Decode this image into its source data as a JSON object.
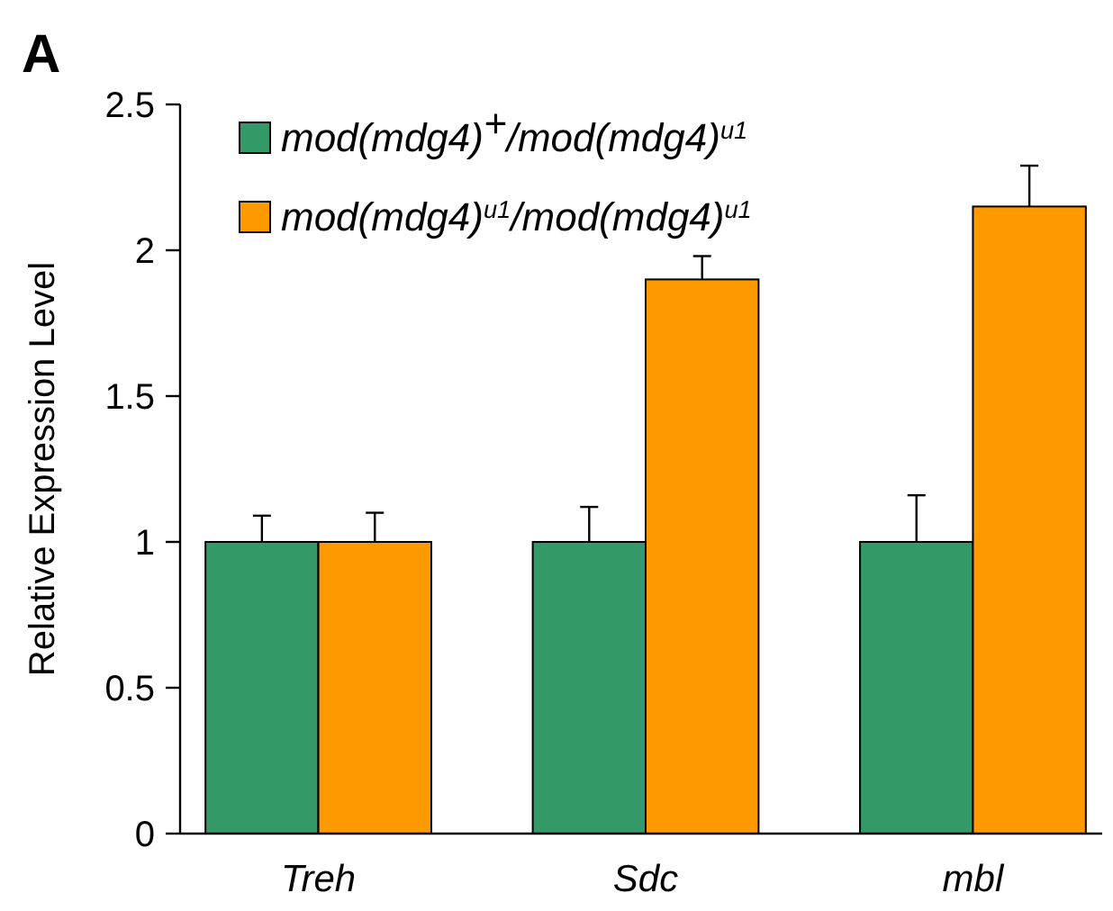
{
  "chart_data": {
    "type": "bar",
    "annotations": [
      "A"
    ],
    "ylabel": "Relative Expression Level",
    "categories": [
      "Treh",
      "Sdc",
      "mbl"
    ],
    "series": [
      {
        "name": "mod(mdg4)$^{+}$/mod(mdg4)$^{u1}$",
        "color": "#339966",
        "values": [
          1,
          1,
          1
        ],
        "errors": [
          [
            1,
            1.09
          ],
          [
            1,
            1.12
          ],
          [
            1,
            1.16
          ]
        ]
      },
      {
        "name": "mod(mdg4)$^{u1}$/mod(mdg4)$^{u1}$",
        "color": "#ff9900",
        "values": [
          1,
          1.9,
          2.15
        ],
        "errors": [
          [
            1,
            1.1
          ],
          [
            1.9,
            1.98
          ],
          [
            2.15,
            2.29
          ]
        ]
      }
    ],
    "ylim": [
      0,
      2.5
    ],
    "yticks": [
      0,
      0.5,
      1,
      1.5,
      2,
      2.5
    ],
    "grid": false,
    "legend": "top left"
  }
}
